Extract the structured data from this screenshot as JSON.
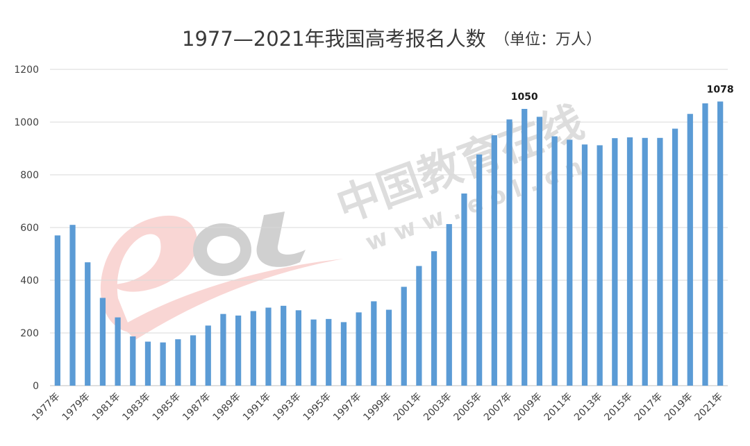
{
  "chart_data": {
    "type": "bar",
    "title": "1977—2021年我国高考报名人数",
    "subtitle": "（单位：万人）",
    "xlabel": "",
    "ylabel": "",
    "ylim": [
      0,
      1200
    ],
    "yticks": [
      0,
      200,
      400,
      600,
      800,
      1000,
      1200
    ],
    "grid": true,
    "legend": "none",
    "bar_color": "#5b9bd5",
    "categories": [
      "1977年",
      "1978年",
      "1979年",
      "1980年",
      "1981年",
      "1982年",
      "1983年",
      "1984年",
      "1985年",
      "1986年",
      "1987年",
      "1988年",
      "1989年",
      "1990年",
      "1991年",
      "1992年",
      "1993年",
      "1994年",
      "1995年",
      "1996年",
      "1997年",
      "1998年",
      "1999年",
      "2000年",
      "2001年",
      "2002年",
      "2003年",
      "2004年",
      "2005年",
      "2006年",
      "2007年",
      "2008年",
      "2009年",
      "2010年",
      "2011年",
      "2012年",
      "2013年",
      "2014年",
      "2015年",
      "2016年",
      "2017年",
      "2018年",
      "2019年",
      "2020年",
      "2021年"
    ],
    "tick_labels": [
      "1977年",
      "1979年",
      "1981年",
      "1983年",
      "1985年",
      "1987年",
      "1989年",
      "1991年",
      "1993年",
      "1995年",
      "1997年",
      "1999年",
      "2001年",
      "2003年",
      "2005年",
      "2007年",
      "2009年",
      "2011年",
      "2013年",
      "2015年",
      "2017年",
      "2019年",
      "2021年"
    ],
    "values": [
      570,
      610,
      468,
      333,
      259,
      187,
      167,
      164,
      176,
      191,
      228,
      272,
      266,
      283,
      296,
      303,
      286,
      251,
      253,
      241,
      278,
      320,
      288,
      375,
      454,
      510,
      613,
      729,
      877,
      950,
      1010,
      1050,
      1020,
      946,
      933,
      915,
      912,
      939,
      942,
      940,
      940,
      975,
      1031,
      1071,
      1078
    ],
    "data_labels": [
      {
        "category": "2008年",
        "text": "1050"
      },
      {
        "category": "2021年",
        "text": "1078"
      }
    ]
  },
  "watermark": {
    "text": "中国教育在线",
    "url_text": "w w w . e o l . c n",
    "logo_text": "eol"
  }
}
